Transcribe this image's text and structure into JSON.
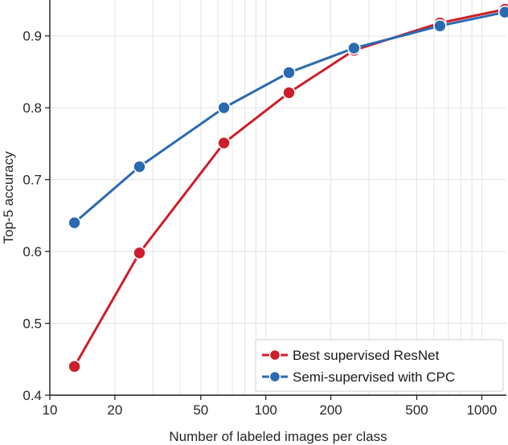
{
  "chart_data": {
    "type": "line",
    "xlabel": "Number of labeled images per class",
    "ylabel": "Top-5 accuracy",
    "xscale": "log",
    "xlim": [
      10,
      1300
    ],
    "ylim": [
      0.4,
      0.95
    ],
    "xticks": [
      10,
      20,
      50,
      100,
      200,
      500,
      1000
    ],
    "xtick_labels": [
      "10",
      "20",
      "50",
      "100",
      "200",
      "500",
      "1000"
    ],
    "yticks": [
      0.4,
      0.5,
      0.6,
      0.7,
      0.8,
      0.9
    ],
    "ytick_labels": [
      "0.4",
      "0.5",
      "0.6",
      "0.7",
      "0.8",
      "0.9"
    ],
    "grid": true,
    "legend_position": "bottom-right",
    "series": [
      {
        "name": "Best supervised ResNet",
        "color": "#cc1f2b",
        "x": [
          13,
          26,
          64,
          128,
          256,
          640,
          1280
        ],
        "y": [
          0.44,
          0.598,
          0.751,
          0.821,
          0.88,
          0.918,
          0.937
        ]
      },
      {
        "name": "Semi-supervised with CPC",
        "color": "#2a6ab0",
        "x": [
          13,
          26,
          64,
          128,
          256,
          640,
          1280
        ],
        "y": [
          0.64,
          0.718,
          0.8,
          0.849,
          0.883,
          0.914,
          0.933
        ]
      }
    ]
  }
}
